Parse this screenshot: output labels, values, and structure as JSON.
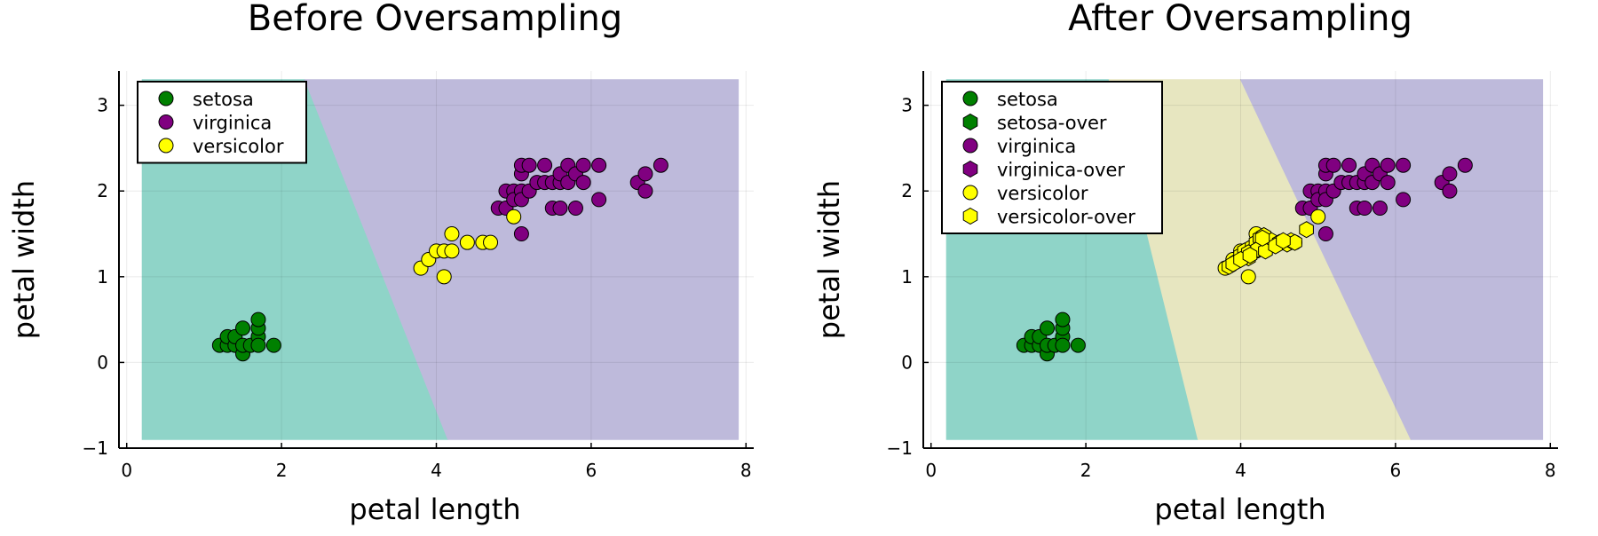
{
  "colors": {
    "setosa": "#008000",
    "virginica": "#800080",
    "versicolor": "#ffff00",
    "region_setosa": "#8fd4c8",
    "region_virginica": "#bebadb",
    "region_versicolor": "#e7e6c0",
    "legend_border": "#000000"
  },
  "chart_data": [
    {
      "type": "scatter",
      "title": "Before Oversampling",
      "xlabel": "petal length",
      "ylabel": "petal width",
      "xlim": [
        -0.1,
        8.1
      ],
      "ylim": [
        -1.0,
        3.4
      ],
      "xticks": [
        0,
        2,
        4,
        6,
        8
      ],
      "yticks": [
        -1,
        0,
        1,
        2,
        3
      ],
      "legend_position": "top-left",
      "decision_regions": [
        {
          "class": "setosa",
          "color_key": "region_setosa",
          "polygon": [
            [
              0.2,
              -0.9
            ],
            [
              0.2,
              3.3
            ],
            [
              2.3,
              3.3
            ],
            [
              4.15,
              -0.9
            ]
          ]
        },
        {
          "class": "virginica",
          "color_key": "region_virginica",
          "polygon": [
            [
              2.3,
              3.3
            ],
            [
              7.9,
              3.3
            ],
            [
              7.9,
              -0.9
            ],
            [
              4.15,
              -0.9
            ]
          ]
        }
      ],
      "series": [
        {
          "name": "setosa",
          "color_key": "setosa",
          "marker": "circle",
          "points": [
            [
              1.2,
              0.2
            ],
            [
              1.3,
              0.2
            ],
            [
              1.3,
              0.3
            ],
            [
              1.4,
              0.2
            ],
            [
              1.4,
              0.3
            ],
            [
              1.5,
              0.1
            ],
            [
              1.5,
              0.2
            ],
            [
              1.5,
              0.4
            ],
            [
              1.6,
              0.2
            ],
            [
              1.7,
              0.3
            ],
            [
              1.7,
              0.4
            ],
            [
              1.7,
              0.5
            ],
            [
              1.7,
              0.2
            ],
            [
              1.9,
              0.2
            ]
          ]
        },
        {
          "name": "virginica",
          "color_key": "virginica",
          "marker": "circle",
          "points": [
            [
              4.8,
              1.8
            ],
            [
              4.9,
              1.8
            ],
            [
              4.9,
              2.0
            ],
            [
              5.0,
              2.0
            ],
            [
              5.0,
              1.9
            ],
            [
              5.1,
              2.0
            ],
            [
              5.1,
              2.2
            ],
            [
              5.1,
              2.3
            ],
            [
              5.1,
              1.9
            ],
            [
              5.1,
              1.5
            ],
            [
              5.2,
              2.0
            ],
            [
              5.2,
              2.3
            ],
            [
              5.3,
              2.1
            ],
            [
              5.4,
              2.1
            ],
            [
              5.4,
              2.3
            ],
            [
              5.5,
              2.1
            ],
            [
              5.5,
              1.8
            ],
            [
              5.6,
              2.1
            ],
            [
              5.6,
              2.2
            ],
            [
              5.6,
              1.8
            ],
            [
              5.7,
              2.1
            ],
            [
              5.7,
              2.3
            ],
            [
              5.8,
              2.2
            ],
            [
              5.8,
              1.8
            ],
            [
              5.9,
              2.1
            ],
            [
              5.9,
              2.3
            ],
            [
              6.1,
              1.9
            ],
            [
              6.1,
              2.3
            ],
            [
              6.6,
              2.1
            ],
            [
              6.7,
              2.2
            ],
            [
              6.7,
              2.0
            ],
            [
              6.9,
              2.3
            ]
          ]
        },
        {
          "name": "versicolor",
          "color_key": "versicolor",
          "marker": "circle",
          "points": [
            [
              3.8,
              1.1
            ],
            [
              3.9,
              1.2
            ],
            [
              4.0,
              1.3
            ],
            [
              4.1,
              1.3
            ],
            [
              4.1,
              1.0
            ],
            [
              4.2,
              1.3
            ],
            [
              4.2,
              1.5
            ],
            [
              4.4,
              1.4
            ],
            [
              4.6,
              1.4
            ],
            [
              4.7,
              1.4
            ],
            [
              5.0,
              1.7
            ]
          ]
        }
      ]
    },
    {
      "type": "scatter",
      "title": "After Oversampling",
      "xlabel": "petal length",
      "ylabel": "petal width",
      "xlim": [
        -0.1,
        8.1
      ],
      "ylim": [
        -1.0,
        3.4
      ],
      "xticks": [
        0,
        2,
        4,
        6,
        8
      ],
      "yticks": [
        -1,
        0,
        1,
        2,
        3
      ],
      "legend_position": "top-left",
      "decision_regions": [
        {
          "class": "setosa",
          "color_key": "region_setosa",
          "polygon": [
            [
              0.2,
              -0.9
            ],
            [
              0.2,
              3.3
            ],
            [
              2.3,
              3.3
            ],
            [
              3.45,
              -0.9
            ]
          ]
        },
        {
          "class": "versicolor",
          "color_key": "region_versicolor",
          "polygon": [
            [
              2.3,
              3.3
            ],
            [
              4.0,
              3.3
            ],
            [
              6.2,
              -0.9
            ],
            [
              3.45,
              -0.9
            ]
          ]
        },
        {
          "class": "virginica",
          "color_key": "region_virginica",
          "polygon": [
            [
              4.0,
              3.3
            ],
            [
              7.9,
              3.3
            ],
            [
              7.9,
              -0.9
            ],
            [
              6.2,
              -0.9
            ]
          ]
        }
      ],
      "series": [
        {
          "name": "setosa",
          "color_key": "setosa",
          "marker": "circle",
          "points": [
            [
              1.2,
              0.2
            ],
            [
              1.3,
              0.2
            ],
            [
              1.3,
              0.3
            ],
            [
              1.4,
              0.2
            ],
            [
              1.4,
              0.3
            ],
            [
              1.5,
              0.1
            ],
            [
              1.5,
              0.2
            ],
            [
              1.5,
              0.4
            ],
            [
              1.6,
              0.2
            ],
            [
              1.7,
              0.3
            ],
            [
              1.7,
              0.4
            ],
            [
              1.7,
              0.5
            ],
            [
              1.7,
              0.2
            ],
            [
              1.9,
              0.2
            ]
          ]
        },
        {
          "name": "setosa-over",
          "color_key": "setosa",
          "marker": "hexagon",
          "points": []
        },
        {
          "name": "virginica",
          "color_key": "virginica",
          "marker": "circle",
          "points": [
            [
              4.8,
              1.8
            ],
            [
              4.9,
              1.8
            ],
            [
              4.9,
              2.0
            ],
            [
              5.0,
              2.0
            ],
            [
              5.0,
              1.9
            ],
            [
              5.1,
              2.0
            ],
            [
              5.1,
              2.2
            ],
            [
              5.1,
              2.3
            ],
            [
              5.1,
              1.9
            ],
            [
              5.1,
              1.5
            ],
            [
              5.2,
              2.0
            ],
            [
              5.2,
              2.3
            ],
            [
              5.3,
              2.1
            ],
            [
              5.4,
              2.1
            ],
            [
              5.4,
              2.3
            ],
            [
              5.5,
              2.1
            ],
            [
              5.5,
              1.8
            ],
            [
              5.6,
              2.1
            ],
            [
              5.6,
              2.2
            ],
            [
              5.6,
              1.8
            ],
            [
              5.7,
              2.1
            ],
            [
              5.7,
              2.3
            ],
            [
              5.8,
              2.2
            ],
            [
              5.8,
              1.8
            ],
            [
              5.9,
              2.1
            ],
            [
              5.9,
              2.3
            ],
            [
              6.1,
              1.9
            ],
            [
              6.1,
              2.3
            ],
            [
              6.6,
              2.1
            ],
            [
              6.7,
              2.2
            ],
            [
              6.7,
              2.0
            ],
            [
              6.9,
              2.3
            ]
          ]
        },
        {
          "name": "virginica-over",
          "color_key": "virginica",
          "marker": "hexagon",
          "points": []
        },
        {
          "name": "versicolor",
          "color_key": "versicolor",
          "marker": "circle",
          "points": [
            [
              3.8,
              1.1
            ],
            [
              3.9,
              1.2
            ],
            [
              4.0,
              1.3
            ],
            [
              4.1,
              1.3
            ],
            [
              4.1,
              1.0
            ],
            [
              4.2,
              1.3
            ],
            [
              4.2,
              1.5
            ],
            [
              4.4,
              1.4
            ],
            [
              4.6,
              1.4
            ],
            [
              4.7,
              1.4
            ],
            [
              5.0,
              1.7
            ]
          ]
        },
        {
          "name": "versicolor-over",
          "color_key": "versicolor",
          "marker": "hexagon",
          "points": [
            [
              3.85,
              1.12
            ],
            [
              3.95,
              1.18
            ],
            [
              4.0,
              1.25
            ],
            [
              4.05,
              1.3
            ],
            [
              4.1,
              1.22
            ],
            [
              4.15,
              1.35
            ],
            [
              4.2,
              1.4
            ],
            [
              4.25,
              1.45
            ],
            [
              4.3,
              1.48
            ],
            [
              4.35,
              1.38
            ],
            [
              4.4,
              1.42
            ],
            [
              4.5,
              1.4
            ],
            [
              4.6,
              1.38
            ],
            [
              4.65,
              1.42
            ],
            [
              4.7,
              1.4
            ],
            [
              4.85,
              1.55
            ],
            [
              4.1,
              1.28
            ],
            [
              3.9,
              1.15
            ],
            [
              4.22,
              1.32
            ],
            [
              4.32,
              1.3
            ],
            [
              4.45,
              1.36
            ],
            [
              4.0,
              1.2
            ],
            [
              4.12,
              1.25
            ],
            [
              4.28,
              1.45
            ],
            [
              4.55,
              1.42
            ]
          ]
        }
      ]
    }
  ]
}
